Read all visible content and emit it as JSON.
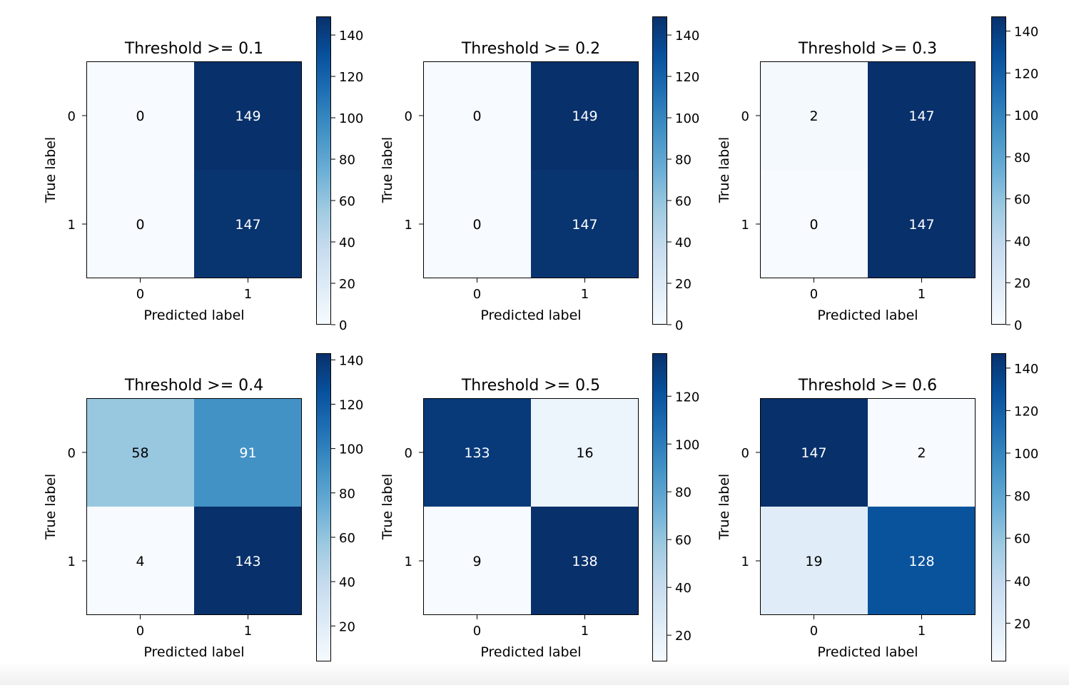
{
  "chart_data": [
    {
      "type": "heatmap",
      "title": "Threshold >= 0.1",
      "xlabel": "Predicted label",
      "ylabel": "True label",
      "x_ticks": [
        "0",
        "1"
      ],
      "y_ticks": [
        "0",
        "1"
      ],
      "matrix": [
        [
          0,
          149
        ],
        [
          0,
          147
        ]
      ],
      "cell_labels": [
        [
          "0",
          "149"
        ],
        [
          "0",
          "147"
        ]
      ],
      "colorbar": {
        "range": [
          0,
          149
        ],
        "ticks": [
          0,
          20,
          40,
          60,
          80,
          100,
          120,
          140
        ],
        "tick_labels": [
          "0",
          "20",
          "40",
          "60",
          "80",
          "100",
          "120",
          "140"
        ]
      }
    },
    {
      "type": "heatmap",
      "title": "Threshold >= 0.2",
      "xlabel": "Predicted label",
      "ylabel": "True label",
      "x_ticks": [
        "0",
        "1"
      ],
      "y_ticks": [
        "0",
        "1"
      ],
      "matrix": [
        [
          0,
          149
        ],
        [
          0,
          147
        ]
      ],
      "cell_labels": [
        [
          "0",
          "149"
        ],
        [
          "0",
          "147"
        ]
      ],
      "colorbar": {
        "range": [
          0,
          149
        ],
        "ticks": [
          0,
          20,
          40,
          60,
          80,
          100,
          120,
          140
        ],
        "tick_labels": [
          "0",
          "20",
          "40",
          "60",
          "80",
          "100",
          "120",
          "140"
        ]
      }
    },
    {
      "type": "heatmap",
      "title": "Threshold >= 0.3",
      "xlabel": "Predicted label",
      "ylabel": "True label",
      "x_ticks": [
        "0",
        "1"
      ],
      "y_ticks": [
        "0",
        "1"
      ],
      "matrix": [
        [
          2,
          147
        ],
        [
          0,
          147
        ]
      ],
      "cell_labels": [
        [
          "2",
          "147"
        ],
        [
          "0",
          "147"
        ]
      ],
      "colorbar": {
        "range": [
          0,
          147
        ],
        "ticks": [
          0,
          20,
          40,
          60,
          80,
          100,
          120,
          140
        ],
        "tick_labels": [
          "0",
          "20",
          "40",
          "60",
          "80",
          "100",
          "120",
          "140"
        ]
      }
    },
    {
      "type": "heatmap",
      "title": "Threshold >= 0.4",
      "xlabel": "Predicted label",
      "ylabel": "True label",
      "x_ticks": [
        "0",
        "1"
      ],
      "y_ticks": [
        "0",
        "1"
      ],
      "matrix": [
        [
          58,
          91
        ],
        [
          4,
          143
        ]
      ],
      "cell_labels": [
        [
          "58",
          "91"
        ],
        [
          "4",
          "143"
        ]
      ],
      "colorbar": {
        "range": [
          4,
          143
        ],
        "ticks": [
          20,
          40,
          60,
          80,
          100,
          120,
          140
        ],
        "tick_labels": [
          "20",
          "40",
          "60",
          "80",
          "100",
          "120",
          "140"
        ]
      }
    },
    {
      "type": "heatmap",
      "title": "Threshold >= 0.5",
      "xlabel": "Predicted label",
      "ylabel": "True label",
      "x_ticks": [
        "0",
        "1"
      ],
      "y_ticks": [
        "0",
        "1"
      ],
      "matrix": [
        [
          133,
          16
        ],
        [
          9,
          138
        ]
      ],
      "cell_labels": [
        [
          "133",
          "16"
        ],
        [
          "9",
          "138"
        ]
      ],
      "colorbar": {
        "range": [
          9,
          138
        ],
        "ticks": [
          20,
          40,
          60,
          80,
          100,
          120
        ],
        "tick_labels": [
          "20",
          "40",
          "60",
          "80",
          "100",
          "120"
        ]
      }
    },
    {
      "type": "heatmap",
      "title": "Threshold >= 0.6",
      "xlabel": "Predicted label",
      "ylabel": "True label",
      "x_ticks": [
        "0",
        "1"
      ],
      "y_ticks": [
        "0",
        "1"
      ],
      "matrix": [
        [
          147,
          2
        ],
        [
          19,
          128
        ]
      ],
      "cell_labels": [
        [
          "147",
          "2"
        ],
        [
          "19",
          "128"
        ]
      ],
      "colorbar": {
        "range": [
          2,
          147
        ],
        "ticks": [
          20,
          40,
          60,
          80,
          100,
          120,
          140
        ],
        "tick_labels": [
          "20",
          "40",
          "60",
          "80",
          "100",
          "120",
          "140"
        ]
      }
    }
  ],
  "colormap": {
    "name": "Blues",
    "stops": [
      "#f7fbff",
      "#deebf7",
      "#c6dbef",
      "#9ecae1",
      "#6baed6",
      "#4292c6",
      "#2171b5",
      "#08519c",
      "#08306b"
    ],
    "text_light": "#ffffff",
    "text_dark": "#000000"
  }
}
